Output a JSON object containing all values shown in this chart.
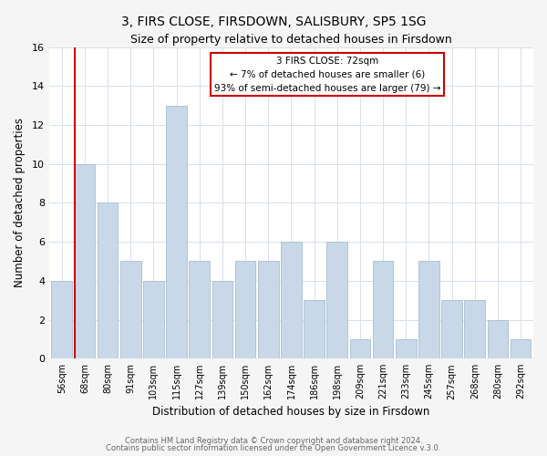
{
  "title": "3, FIRS CLOSE, FIRSDOWN, SALISBURY, SP5 1SG",
  "subtitle": "Size of property relative to detached houses in Firsdown",
  "xlabel": "Distribution of detached houses by size in Firsdown",
  "ylabel": "Number of detached properties",
  "bar_color": "#c8d8e8",
  "bar_edge_color": "#b0c4d8",
  "categories": [
    "56sqm",
    "68sqm",
    "80sqm",
    "91sqm",
    "103sqm",
    "115sqm",
    "127sqm",
    "139sqm",
    "150sqm",
    "162sqm",
    "174sqm",
    "186sqm",
    "198sqm",
    "209sqm",
    "221sqm",
    "233sqm",
    "245sqm",
    "257sqm",
    "268sqm",
    "280sqm",
    "292sqm"
  ],
  "values": [
    4,
    10,
    8,
    5,
    4,
    13,
    5,
    4,
    5,
    5,
    6,
    3,
    6,
    1,
    5,
    1,
    5,
    3,
    3,
    2,
    1
  ],
  "ylim": [
    0,
    16
  ],
  "yticks": [
    0,
    2,
    4,
    6,
    8,
    10,
    12,
    14,
    16
  ],
  "annotation_line1": "3 FIRS CLOSE: 72sqm",
  "annotation_line2": "← 7% of detached houses are smaller (6)",
  "annotation_line3": "93% of semi-detached houses are larger (79) →",
  "annotation_box_color": "#ffffff",
  "annotation_box_edge": "#cc0000",
  "vline_color": "#cc0000",
  "footer1": "Contains HM Land Registry data © Crown copyright and database right 2024.",
  "footer2": "Contains public sector information licensed under the Open Government Licence v.3.0.",
  "background_color": "#f5f5f5",
  "plot_background": "#ffffff",
  "grid_color": "#d8e0e8"
}
